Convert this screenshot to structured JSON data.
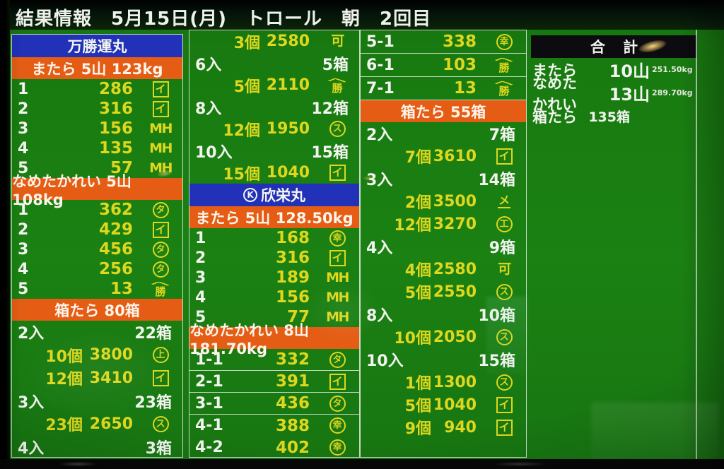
{
  "title": "結果情報　5月15日(月)　トロール　朝　2回目",
  "colors": {
    "board_green": "#1b8113",
    "header_blue": "#2131b8",
    "header_orange": "#e55d15",
    "value_yellow": "#ded71e",
    "text_white": "#f2f4ef",
    "total_header_black": "#0b0b10"
  },
  "columns": [
    {
      "name": "column-1",
      "blocks": [
        {
          "t": "boat",
          "text": "万勝運丸"
        },
        {
          "t": "species",
          "text": "またら 5山 123kg"
        },
        {
          "t": "lot",
          "n": "1",
          "v": "286",
          "mark": {
            "shape": "box",
            "char": "イ"
          }
        },
        {
          "t": "lot",
          "n": "2",
          "v": "316",
          "mark": {
            "shape": "box",
            "char": "イ"
          }
        },
        {
          "t": "lot",
          "n": "3",
          "v": "156",
          "mark": {
            "shape": "text",
            "char": "MH"
          }
        },
        {
          "t": "lot",
          "n": "4",
          "v": "135",
          "mark": {
            "shape": "text",
            "char": "MH"
          }
        },
        {
          "t": "lot",
          "n": "5",
          "v": "57",
          "mark": {
            "shape": "text",
            "char": "MH"
          }
        },
        {
          "t": "species",
          "text": "なめたかれい 5山 108kg"
        },
        {
          "t": "lot",
          "n": "1",
          "v": "362",
          "mark": {
            "shape": "circle",
            "char": "タ"
          }
        },
        {
          "t": "lot",
          "n": "2",
          "v": "429",
          "mark": {
            "shape": "box",
            "char": "イ"
          }
        },
        {
          "t": "lot",
          "n": "3",
          "v": "456",
          "mark": {
            "shape": "circle",
            "char": "タ"
          }
        },
        {
          "t": "lot",
          "n": "4",
          "v": "256",
          "mark": {
            "shape": "circle",
            "char": "タ"
          }
        },
        {
          "t": "lot",
          "n": "5",
          "v": "13",
          "mark": {
            "shape": "hat",
            "char": "勝"
          }
        },
        {
          "t": "species",
          "text": "箱たら 80箱"
        },
        {
          "t": "pack",
          "label": "2入",
          "boxes": "22箱"
        },
        {
          "t": "sale",
          "qty": "10個",
          "price": "3800",
          "mark": {
            "shape": "circle",
            "char": "上"
          }
        },
        {
          "t": "sale",
          "qty": "12個",
          "price": "3410",
          "mark": {
            "shape": "box",
            "char": "イ"
          }
        },
        {
          "t": "pack",
          "label": "3入",
          "boxes": "23箱"
        },
        {
          "t": "sale",
          "qty": "23個",
          "price": "2650",
          "mark": {
            "shape": "circle",
            "char": "ス"
          }
        },
        {
          "t": "pack",
          "label": "4入",
          "boxes": "3箱"
        }
      ]
    },
    {
      "name": "column-2",
      "blocks": [
        {
          "t": "sale",
          "qty": "3個",
          "price": "2580",
          "mark": {
            "shape": "text",
            "char": "可"
          }
        },
        {
          "t": "pack",
          "label": "6入",
          "boxes": "5箱"
        },
        {
          "t": "sale",
          "qty": "5個",
          "price": "2110",
          "mark": {
            "shape": "hat",
            "char": "勝"
          }
        },
        {
          "t": "pack",
          "label": "8入",
          "boxes": "12箱"
        },
        {
          "t": "sale",
          "qty": "12個",
          "price": "1950",
          "mark": {
            "shape": "circle",
            "char": "ス"
          }
        },
        {
          "t": "pack",
          "label": "10入",
          "boxes": "15箱"
        },
        {
          "t": "sale",
          "qty": "15個",
          "price": "1040",
          "mark": {
            "shape": "box",
            "char": "イ"
          }
        },
        {
          "t": "boat",
          "pre": "K",
          "text": "欣栄丸"
        },
        {
          "t": "species",
          "text": "またら 5山 128.50kg"
        },
        {
          "t": "lot",
          "n": "1",
          "v": "168",
          "mark": {
            "shape": "circle",
            "char": "幸"
          }
        },
        {
          "t": "lot",
          "n": "2",
          "v": "316",
          "mark": {
            "shape": "box",
            "char": "イ"
          }
        },
        {
          "t": "lot",
          "n": "3",
          "v": "189",
          "mark": {
            "shape": "text",
            "char": "MH"
          }
        },
        {
          "t": "lot",
          "n": "4",
          "v": "156",
          "mark": {
            "shape": "text",
            "char": "MH"
          }
        },
        {
          "t": "lot",
          "n": "5",
          "v": "77",
          "mark": {
            "shape": "text",
            "char": "MH"
          }
        },
        {
          "t": "species",
          "text": "なめたかれい 8山 181.70kg"
        },
        {
          "t": "lot",
          "n": "1-1",
          "v": "332",
          "mark": {
            "shape": "circle",
            "char": "タ"
          },
          "sep": true
        },
        {
          "t": "lot",
          "n": "2-1",
          "v": "391",
          "mark": {
            "shape": "box",
            "char": "イ"
          },
          "sep": true
        },
        {
          "t": "lot",
          "n": "3-1",
          "v": "436",
          "mark": {
            "shape": "circle",
            "char": "タ"
          },
          "sep": true
        },
        {
          "t": "lot",
          "n": "4-1",
          "v": "388",
          "mark": {
            "shape": "circle",
            "char": "幸"
          }
        },
        {
          "t": "lot",
          "n": "4-2",
          "v": "402",
          "mark": {
            "shape": "circle",
            "char": "幸"
          }
        }
      ]
    },
    {
      "name": "column-3",
      "blocks": [
        {
          "t": "lot",
          "n": "5-1",
          "v": "338",
          "mark": {
            "shape": "circle",
            "char": "幸"
          },
          "sep": true
        },
        {
          "t": "lot",
          "n": "6-1",
          "v": "103",
          "mark": {
            "shape": "hat",
            "char": "勝"
          },
          "sep": true
        },
        {
          "t": "lot",
          "n": "7-1",
          "v": "13",
          "mark": {
            "shape": "hat",
            "char": "勝"
          },
          "sep": true
        },
        {
          "t": "species",
          "text": "箱たら 55箱"
        },
        {
          "t": "pack",
          "label": "2入",
          "boxes": "7箱"
        },
        {
          "t": "sale",
          "qty": "7個",
          "price": "3610",
          "mark": {
            "shape": "box",
            "char": "イ"
          }
        },
        {
          "t": "pack",
          "label": "3入",
          "boxes": "14箱"
        },
        {
          "t": "sale",
          "qty": "2個",
          "price": "3500",
          "mark": {
            "shape": "underline",
            "char": "メ"
          }
        },
        {
          "t": "sale",
          "qty": "12個",
          "price": "3270",
          "mark": {
            "shape": "circle",
            "char": "工"
          }
        },
        {
          "t": "pack",
          "label": "4入",
          "boxes": "9箱"
        },
        {
          "t": "sale",
          "qty": "4個",
          "price": "2580",
          "mark": {
            "shape": "text",
            "char": "可"
          }
        },
        {
          "t": "sale",
          "qty": "5個",
          "price": "2550",
          "mark": {
            "shape": "circle",
            "char": "ス"
          }
        },
        {
          "t": "pack",
          "label": "8入",
          "boxes": "10箱"
        },
        {
          "t": "sale",
          "qty": "10個",
          "price": "2050",
          "mark": {
            "shape": "circle",
            "char": "ス"
          }
        },
        {
          "t": "pack",
          "label": "10入",
          "boxes": "15箱"
        },
        {
          "t": "sale",
          "qty": "1個",
          "price": "1300",
          "mark": {
            "shape": "circle",
            "char": "ス"
          }
        },
        {
          "t": "sale",
          "qty": "5個",
          "price": "1040",
          "mark": {
            "shape": "box",
            "char": "イ"
          }
        },
        {
          "t": "sale",
          "qty": "9個",
          "price": "940",
          "mark": {
            "shape": "box",
            "char": "イ"
          }
        }
      ]
    }
  ],
  "total": {
    "header": "合 計",
    "rows": [
      {
        "label": "またら",
        "value": "10山",
        "kg": "251.50kg"
      },
      {
        "label": "なめたかれい",
        "value": "13山",
        "kg": "289.70kg"
      },
      {
        "label": "箱たら",
        "value": "135箱",
        "kg": ""
      }
    ]
  }
}
